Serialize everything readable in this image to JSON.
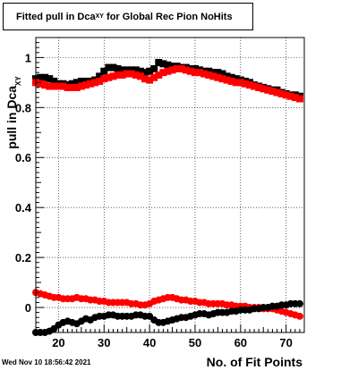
{
  "chart_data": {
    "type": "scatter",
    "title": {
      "main": "Fitted pull in Dca",
      "sub": "XY",
      "rest": " for Global Rec Pion NoHits"
    },
    "xlabel": "No. of Fit Points",
    "ylabel_main": "pull in Dca",
    "ylabel_sub": "XY",
    "xlim": [
      15,
      74
    ],
    "ylim": [
      -0.1,
      1.08
    ],
    "xticks": [
      20,
      30,
      40,
      50,
      60,
      70
    ],
    "yticks": [
      0,
      0.2,
      0.4,
      0.6,
      0.8,
      1
    ],
    "ytick_labels": [
      "0",
      "0.2",
      "0.4",
      "0.6",
      "0.8",
      "1"
    ],
    "grid": true,
    "series": [
      {
        "color": "#000000",
        "marker": "square",
        "x": [
          15,
          16,
          17,
          18,
          19,
          20,
          21,
          22,
          23,
          24,
          25,
          26,
          27,
          28,
          29,
          30,
          31,
          32,
          33,
          34,
          35,
          36,
          37,
          38,
          39,
          40,
          41,
          42,
          43,
          44,
          45,
          46,
          47,
          48,
          49,
          50,
          51,
          52,
          53,
          54,
          55,
          56,
          57,
          58,
          59,
          60,
          61,
          62,
          63,
          64,
          65,
          66,
          67,
          68,
          69,
          70,
          71,
          72,
          73
        ],
        "y": [
          0.915,
          0.92,
          0.92,
          0.915,
          0.905,
          0.895,
          0.895,
          0.89,
          0.895,
          0.9,
          0.905,
          0.905,
          0.905,
          0.91,
          0.925,
          0.945,
          0.96,
          0.96,
          0.955,
          0.95,
          0.95,
          0.95,
          0.95,
          0.945,
          0.94,
          0.945,
          0.955,
          0.98,
          0.975,
          0.97,
          0.965,
          0.965,
          0.96,
          0.96,
          0.955,
          0.955,
          0.95,
          0.945,
          0.945,
          0.94,
          0.94,
          0.935,
          0.925,
          0.92,
          0.915,
          0.91,
          0.905,
          0.9,
          0.89,
          0.885,
          0.88,
          0.875,
          0.87,
          0.87,
          0.86,
          0.855,
          0.85,
          0.85,
          0.845
        ]
      },
      {
        "color": "#ff0000",
        "marker": "square",
        "x": [
          15,
          16,
          17,
          18,
          19,
          20,
          21,
          22,
          23,
          24,
          25,
          26,
          27,
          28,
          29,
          30,
          31,
          32,
          33,
          34,
          35,
          36,
          37,
          38,
          39,
          40,
          41,
          42,
          43,
          44,
          45,
          46,
          47,
          48,
          49,
          50,
          51,
          52,
          53,
          54,
          55,
          56,
          57,
          58,
          59,
          60,
          61,
          62,
          63,
          64,
          65,
          66,
          67,
          68,
          69,
          70,
          71,
          72,
          73
        ],
        "y": [
          0.9,
          0.895,
          0.89,
          0.885,
          0.885,
          0.885,
          0.885,
          0.88,
          0.88,
          0.88,
          0.885,
          0.89,
          0.895,
          0.9,
          0.905,
          0.915,
          0.92,
          0.925,
          0.93,
          0.93,
          0.935,
          0.935,
          0.93,
          0.925,
          0.915,
          0.91,
          0.92,
          0.93,
          0.94,
          0.945,
          0.95,
          0.955,
          0.955,
          0.95,
          0.945,
          0.94,
          0.94,
          0.935,
          0.93,
          0.925,
          0.92,
          0.915,
          0.91,
          0.905,
          0.9,
          0.9,
          0.895,
          0.89,
          0.885,
          0.88,
          0.875,
          0.87,
          0.865,
          0.86,
          0.855,
          0.85,
          0.845,
          0.84,
          0.835
        ]
      },
      {
        "color": "#ff0000",
        "marker": "circle",
        "x": [
          15,
          16,
          17,
          18,
          19,
          20,
          21,
          22,
          23,
          24,
          25,
          26,
          27,
          28,
          29,
          30,
          31,
          32,
          33,
          34,
          35,
          36,
          37,
          38,
          39,
          40,
          41,
          42,
          43,
          44,
          45,
          46,
          47,
          48,
          49,
          50,
          51,
          52,
          53,
          54,
          55,
          56,
          57,
          58,
          59,
          60,
          61,
          62,
          63,
          64,
          65,
          66,
          67,
          68,
          69,
          70,
          71,
          72,
          73
        ],
        "y": [
          0.06,
          0.055,
          0.05,
          0.045,
          0.04,
          0.04,
          0.035,
          0.035,
          0.035,
          0.04,
          0.035,
          0.035,
          0.03,
          0.03,
          0.025,
          0.025,
          0.02,
          0.02,
          0.02,
          0.02,
          0.02,
          0.015,
          0.015,
          0.01,
          0.01,
          0.015,
          0.025,
          0.03,
          0.035,
          0.04,
          0.04,
          0.035,
          0.03,
          0.03,
          0.025,
          0.025,
          0.02,
          0.02,
          0.015,
          0.015,
          0.015,
          0.015,
          0.01,
          0.01,
          0.005,
          0.005,
          0.005,
          0.0,
          0.0,
          0.0,
          -0.005,
          -0.005,
          -0.005,
          -0.01,
          -0.015,
          -0.02,
          -0.025,
          -0.03,
          -0.035
        ]
      },
      {
        "color": "#000000",
        "marker": "circle",
        "x": [
          15,
          16,
          17,
          18,
          19,
          20,
          21,
          22,
          23,
          24,
          25,
          26,
          27,
          28,
          29,
          30,
          31,
          32,
          33,
          34,
          35,
          36,
          37,
          38,
          39,
          40,
          41,
          42,
          43,
          44,
          45,
          46,
          47,
          48,
          49,
          50,
          51,
          52,
          53,
          54,
          55,
          56,
          57,
          58,
          59,
          60,
          61,
          62,
          63,
          64,
          65,
          66,
          67,
          68,
          69,
          70,
          71,
          72,
          73
        ],
        "y": [
          -0.1,
          -0.1,
          -0.1,
          -0.095,
          -0.085,
          -0.07,
          -0.06,
          -0.055,
          -0.06,
          -0.065,
          -0.055,
          -0.045,
          -0.05,
          -0.04,
          -0.035,
          -0.035,
          -0.03,
          -0.03,
          -0.035,
          -0.035,
          -0.035,
          -0.035,
          -0.03,
          -0.03,
          -0.035,
          -0.035,
          -0.05,
          -0.06,
          -0.06,
          -0.055,
          -0.05,
          -0.045,
          -0.04,
          -0.04,
          -0.035,
          -0.03,
          -0.025,
          -0.025,
          -0.03,
          -0.025,
          -0.02,
          -0.02,
          -0.02,
          -0.015,
          -0.015,
          -0.01,
          -0.01,
          -0.01,
          -0.005,
          -0.005,
          0.0,
          0.0,
          0.005,
          0.005,
          0.01,
          0.01,
          0.015,
          0.015,
          0.015
        ]
      }
    ]
  },
  "footer": {
    "timestamp": "Wed Nov 10 18:56:42 2021"
  }
}
